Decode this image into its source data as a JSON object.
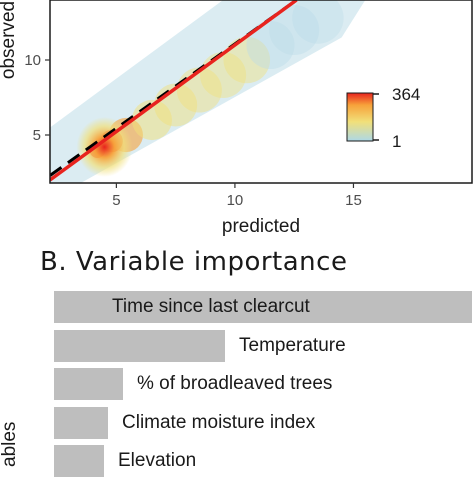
{
  "chart_data": [
    {
      "type": "heatmap",
      "title": "",
      "xlabel": "predicted",
      "ylabel": "observed",
      "xlim": [
        2.2,
        20
      ],
      "ylim": [
        1.8,
        14
      ],
      "x_ticks": [
        5,
        10,
        15
      ],
      "y_ticks": [
        5,
        10
      ],
      "density_cells": [
        {
          "x": 4.2,
          "y": 4.0,
          "count": 364
        },
        {
          "x": 4.8,
          "y": 4.6,
          "count": 300
        },
        {
          "x": 5.4,
          "y": 5.0,
          "count": 180
        },
        {
          "x": 6.5,
          "y": 6.0,
          "count": 120
        },
        {
          "x": 7.5,
          "y": 7.0,
          "count": 90
        },
        {
          "x": 8.5,
          "y": 8.0,
          "count": 70
        },
        {
          "x": 9.5,
          "y": 9.0,
          "count": 60
        },
        {
          "x": 10.5,
          "y": 10.0,
          "count": 55
        },
        {
          "x": 11.5,
          "y": 11.0,
          "count": 40
        },
        {
          "x": 12.5,
          "y": 12.0,
          "count": 20
        },
        {
          "x": 13.5,
          "y": 12.8,
          "count": 6
        }
      ],
      "lines": [
        {
          "style": "dashed",
          "color": "#000000",
          "x": [
            2.2,
            12.6
          ],
          "y": [
            2.3,
            14
          ]
        },
        {
          "style": "solid",
          "color": "#e8231e",
          "x": [
            2.2,
            12.6
          ],
          "y": [
            2.0,
            14
          ]
        }
      ],
      "legend": {
        "position": "right",
        "min_label": "1",
        "max_label": "364",
        "colors": [
          "#add8e6",
          "#f1e07a",
          "#f7a23a",
          "#e8231e"
        ]
      }
    },
    {
      "type": "bar",
      "title": "B. Variable importance",
      "ylabel": "ables",
      "orientation": "horizontal",
      "categories": [
        "Time since last clearcut",
        "Temperature",
        "% of broadleaved trees",
        "Climate moisture index",
        "Elevation"
      ],
      "values": [
        1.0,
        0.41,
        0.165,
        0.13,
        0.12
      ]
    }
  ]
}
